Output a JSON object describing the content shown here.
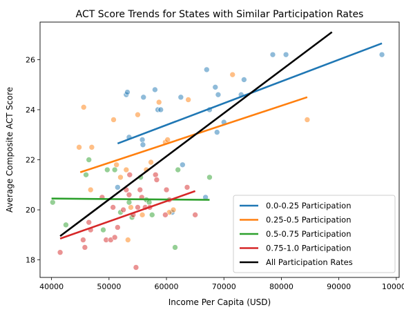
{
  "chart_data": {
    "type": "scatter",
    "title": "ACT Score Trends for States with Similar Participation Rates",
    "xlabel": "Income Per Capita (USD)",
    "ylabel": "Average Composite ACT Score",
    "xlim": [
      38000,
      100500
    ],
    "ylim": [
      17.3,
      27.5
    ],
    "x_ticks": [
      40000,
      50000,
      60000,
      70000,
      80000,
      90000,
      100000
    ],
    "y_ticks": [
      18,
      20,
      22,
      24,
      26
    ],
    "grid": false,
    "legend_position": "lower-right",
    "series": [
      {
        "name": "0.0-0.25 Participation",
        "color": "#1f77b4",
        "points": [
          [
            51500,
            20.9
          ],
          [
            53000,
            24.6
          ],
          [
            53200,
            24.7
          ],
          [
            53500,
            22.9
          ],
          [
            55800,
            22.8
          ],
          [
            55900,
            22.6
          ],
          [
            56000,
            24.5
          ],
          [
            58000,
            24.8
          ],
          [
            58500,
            24.0
          ],
          [
            59000,
            24.0
          ],
          [
            61000,
            19.9
          ],
          [
            62500,
            24.5
          ],
          [
            62800,
            21.8
          ],
          [
            66800,
            20.5
          ],
          [
            67000,
            25.6
          ],
          [
            67500,
            24.0
          ],
          [
            68500,
            24.9
          ],
          [
            68800,
            23.1
          ],
          [
            69000,
            24.6
          ],
          [
            70000,
            23.5
          ],
          [
            73000,
            24.6
          ],
          [
            73500,
            25.2
          ],
          [
            78500,
            26.2
          ],
          [
            80800,
            26.2
          ],
          [
            97500,
            26.2
          ]
        ],
        "trend": [
          [
            51500,
            22.65
          ],
          [
            97500,
            26.65
          ]
        ]
      },
      {
        "name": "0.25-0.5 Participation",
        "color": "#ff7f0e",
        "points": [
          [
            44800,
            22.5
          ],
          [
            45600,
            24.1
          ],
          [
            46800,
            20.8
          ],
          [
            47000,
            22.5
          ],
          [
            50800,
            23.6
          ],
          [
            51300,
            21.8
          ],
          [
            52000,
            21.3
          ],
          [
            53000,
            21.6
          ],
          [
            53300,
            18.8
          ],
          [
            53800,
            20.1
          ],
          [
            55000,
            23.8
          ],
          [
            55800,
            19.8
          ],
          [
            56500,
            21.6
          ],
          [
            57300,
            21.9
          ],
          [
            58700,
            24.3
          ],
          [
            59800,
            22.7
          ],
          [
            60200,
            22.8
          ],
          [
            60500,
            19.9
          ],
          [
            61200,
            20.0
          ],
          [
            63800,
            24.4
          ],
          [
            71500,
            25.4
          ],
          [
            84500,
            23.6
          ]
        ],
        "trend": [
          [
            45000,
            21.5
          ],
          [
            84500,
            24.5
          ]
        ]
      },
      {
        "name": "0.5-0.75 Participation",
        "color": "#2ca02c",
        "points": [
          [
            40200,
            20.3
          ],
          [
            42500,
            19.4
          ],
          [
            46000,
            21.4
          ],
          [
            46500,
            22.0
          ],
          [
            49000,
            19.2
          ],
          [
            49700,
            21.6
          ],
          [
            51000,
            21.6
          ],
          [
            52000,
            19.9
          ],
          [
            53500,
            20.3
          ],
          [
            54000,
            19.7
          ],
          [
            55500,
            21.3
          ],
          [
            56500,
            20.4
          ],
          [
            57000,
            20.3
          ],
          [
            57500,
            19.8
          ],
          [
            61500,
            18.5
          ],
          [
            62000,
            21.6
          ],
          [
            67500,
            21.3
          ]
        ],
        "trend": [
          [
            40000,
            20.45
          ],
          [
            67500,
            20.4
          ]
        ]
      },
      {
        "name": "0.75-1.0 Participation",
        "color": "#d62728",
        "points": [
          [
            41500,
            18.3
          ],
          [
            45500,
            18.8
          ],
          [
            45800,
            18.5
          ],
          [
            46500,
            19.5
          ],
          [
            46800,
            19.2
          ],
          [
            48800,
            20.5
          ],
          [
            49500,
            18.8
          ],
          [
            50300,
            18.8
          ],
          [
            50700,
            20.1
          ],
          [
            51000,
            18.9
          ],
          [
            51500,
            19.3
          ],
          [
            52500,
            20.0
          ],
          [
            53000,
            20.8
          ],
          [
            53500,
            20.6
          ],
          [
            53600,
            21.4
          ],
          [
            54200,
            19.8
          ],
          [
            54700,
            17.7
          ],
          [
            55000,
            20.1
          ],
          [
            55400,
            20.8
          ],
          [
            55700,
            20.5
          ],
          [
            56300,
            20.1
          ],
          [
            57100,
            20.1
          ],
          [
            58100,
            21.4
          ],
          [
            58300,
            21.2
          ],
          [
            59800,
            19.8
          ],
          [
            60000,
            20.8
          ],
          [
            60500,
            20.4
          ],
          [
            63600,
            20.9
          ],
          [
            65000,
            19.8
          ]
        ],
        "trend": [
          [
            41500,
            18.85
          ],
          [
            65000,
            20.75
          ]
        ]
      }
    ],
    "overall_trend": {
      "name": "All Participation Rates",
      "color": "#000000",
      "points": [
        [
          41500,
          18.95
        ],
        [
          88800,
          27.1
        ]
      ]
    }
  }
}
